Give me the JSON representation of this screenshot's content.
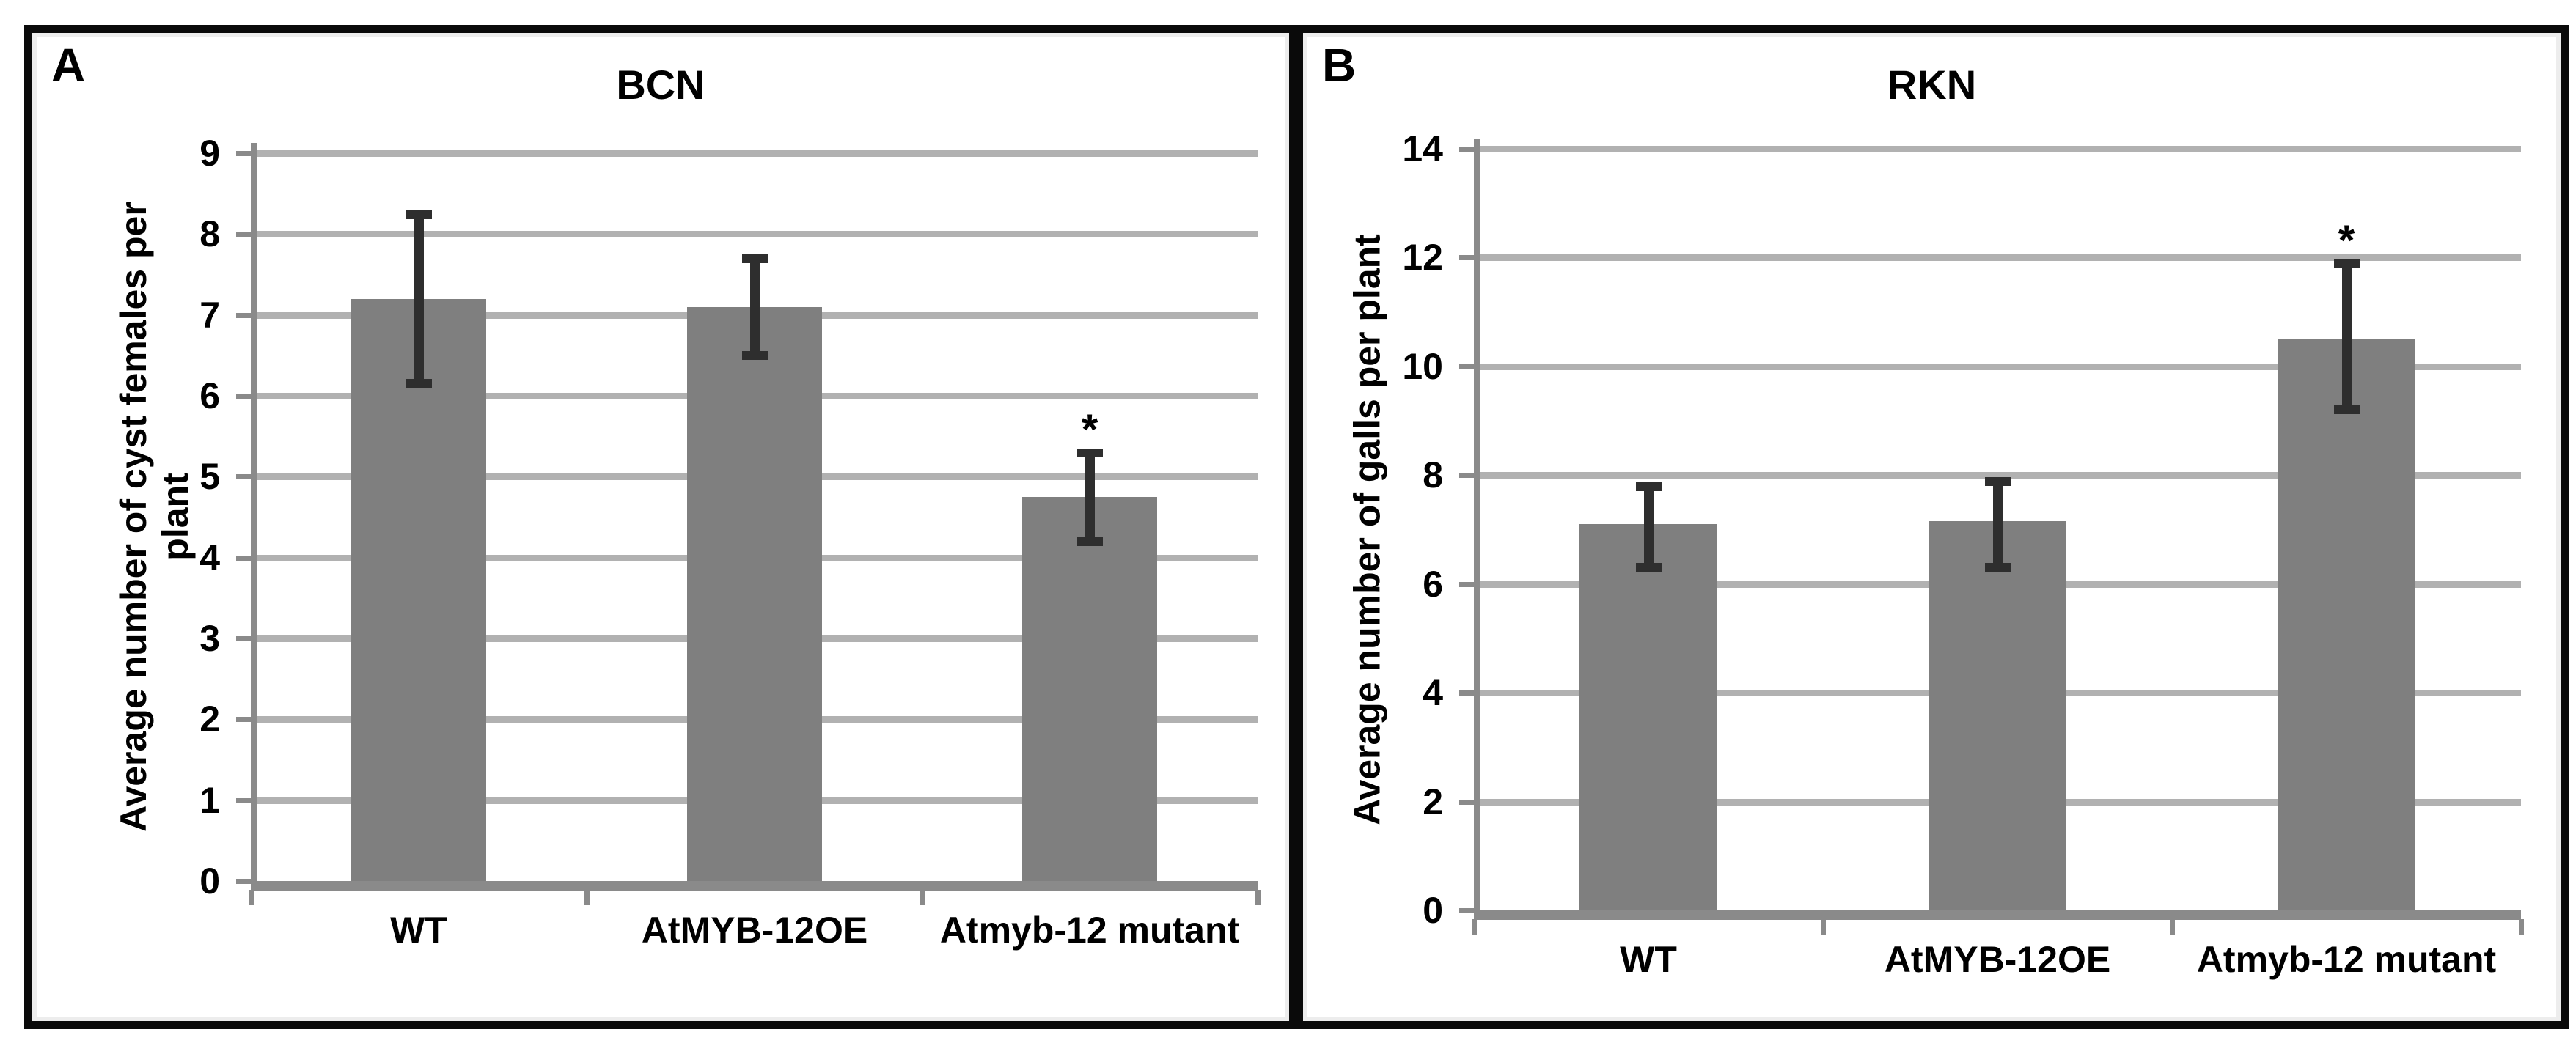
{
  "figure_type": "two-panel bar chart figure",
  "chart_data": [
    {
      "type": "bar",
      "panel_label": "A",
      "title": "BCN",
      "categories": [
        "WT",
        "AtMYB-12OE",
        "Atmyb-12 mutant"
      ],
      "values": [
        7.2,
        7.1,
        4.75
      ],
      "error_up": [
        1.05,
        0.6,
        0.55
      ],
      "error_down": [
        1.05,
        0.6,
        0.55
      ],
      "significance": [
        "",
        "",
        "*"
      ],
      "ylabel": "Average number of cyst females per plant",
      "ylabel_lines": [
        "Average number of cyst females per",
        "plant"
      ],
      "xlabel": "",
      "ylim": [
        0,
        9
      ],
      "ytick_step": 1,
      "grid": true,
      "legend": null,
      "bar_color": "#7f7f7f",
      "gridline_color": "#b1b1b1",
      "axis_color": "#8a8a8a",
      "error_color": "#2e2e2e",
      "text_color": "#000000"
    },
    {
      "type": "bar",
      "panel_label": "B",
      "title": "RKN",
      "categories": [
        "WT",
        "AtMYB-12OE",
        "Atmyb-12 mutant"
      ],
      "values": [
        7.1,
        7.15,
        10.5
      ],
      "error_up": [
        0.7,
        0.75,
        1.4
      ],
      "error_down": [
        0.8,
        0.85,
        1.3
      ],
      "significance": [
        "",
        "",
        "*"
      ],
      "ylabel": "Average number of galls per plant",
      "ylabel_lines": [
        "Average number of galls per plant"
      ],
      "xlabel": "",
      "ylim": [
        0,
        14
      ],
      "ytick_step": 2,
      "grid": true,
      "legend": null,
      "bar_color": "#7f7f7f",
      "gridline_color": "#b1b1b1",
      "axis_color": "#8a8a8a",
      "error_color": "#2e2e2e",
      "text_color": "#000000"
    }
  ]
}
